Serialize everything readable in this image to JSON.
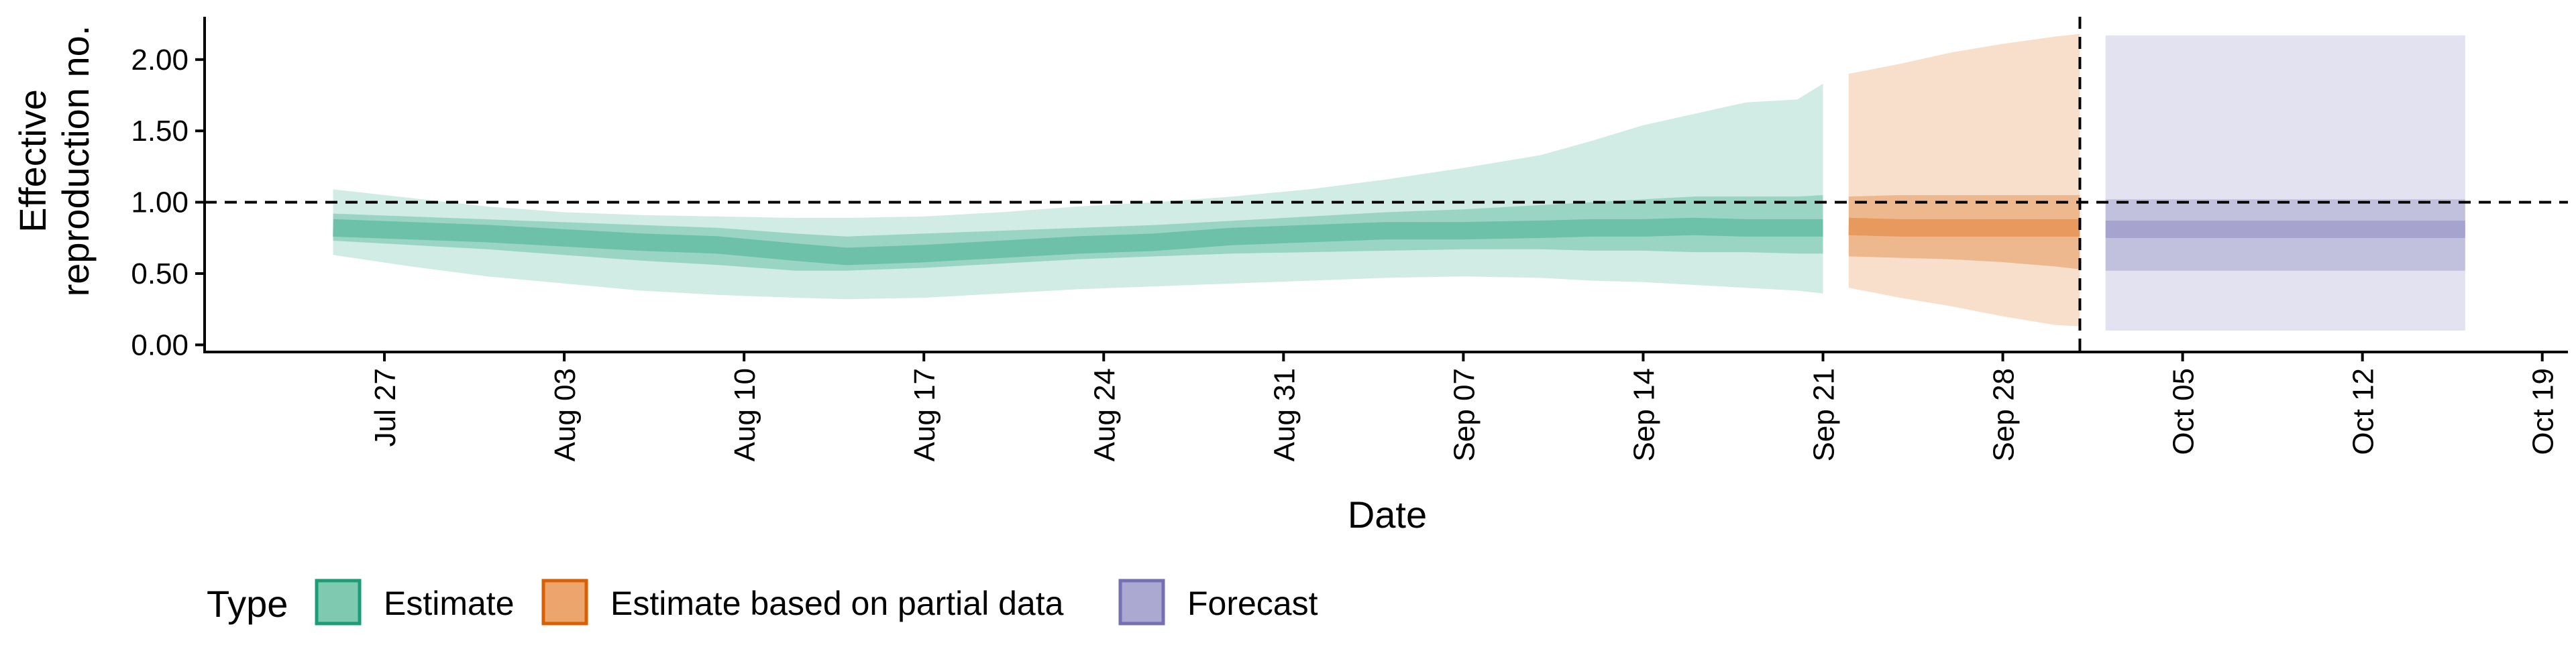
{
  "chart_data": {
    "type": "area",
    "xlabel": "Date",
    "ylabel_lines": [
      "Effective",
      "reproduction no."
    ],
    "ylim": [
      -0.05,
      2.3
    ],
    "xlim": [
      "2020-07-20",
      "2020-10-20"
    ],
    "y_ticks": [
      {
        "value": 0.0,
        "label": "0.00"
      },
      {
        "value": 0.5,
        "label": "0.50"
      },
      {
        "value": 1.0,
        "label": "1.00"
      },
      {
        "value": 1.5,
        "label": "1.50"
      },
      {
        "value": 2.0,
        "label": "2.00"
      }
    ],
    "x_ticks": [
      {
        "date": "2020-07-27",
        "label": "Jul 27"
      },
      {
        "date": "2020-08-03",
        "label": "Aug 03"
      },
      {
        "date": "2020-08-10",
        "label": "Aug 10"
      },
      {
        "date": "2020-08-17",
        "label": "Aug 17"
      },
      {
        "date": "2020-08-24",
        "label": "Aug 24"
      },
      {
        "date": "2020-08-31",
        "label": "Aug 31"
      },
      {
        "date": "2020-09-07",
        "label": "Sep 07"
      },
      {
        "date": "2020-09-14",
        "label": "Sep 14"
      },
      {
        "date": "2020-09-21",
        "label": "Sep 21"
      },
      {
        "date": "2020-09-28",
        "label": "Sep 28"
      },
      {
        "date": "2020-10-05",
        "label": "Oct 05"
      },
      {
        "date": "2020-10-12",
        "label": "Oct 12"
      },
      {
        "date": "2020-10-19",
        "label": "Oct 19"
      }
    ],
    "reference_lines": {
      "horizontal_y": 1.0,
      "vertical_date": "2020-10-01"
    },
    "grid": false,
    "legend": {
      "title": "Type",
      "position": "bottom-left",
      "entries": [
        {
          "label": "Estimate",
          "fill": "#7fc9b0",
          "stroke": "#1b9e77"
        },
        {
          "label": "Estimate based on partial data",
          "fill": "#eda56e",
          "stroke": "#d95f02"
        },
        {
          "label": "Forecast",
          "fill": "#aba8d1",
          "stroke": "#7570b3"
        }
      ]
    },
    "series": [
      {
        "type_label": "Estimate",
        "color": "#1b9e77",
        "x": [
          "2020-07-25",
          "2020-07-28",
          "2020-07-31",
          "2020-08-03",
          "2020-08-06",
          "2020-08-09",
          "2020-08-12",
          "2020-08-14",
          "2020-08-17",
          "2020-08-20",
          "2020-08-23",
          "2020-08-26",
          "2020-08-29",
          "2020-09-01",
          "2020-09-04",
          "2020-09-07",
          "2020-09-10",
          "2020-09-12",
          "2020-09-14",
          "2020-09-16",
          "2020-09-18",
          "2020-09-20",
          "2020-09-21"
        ],
        "median": [
          0.82,
          0.8,
          0.78,
          0.75,
          0.72,
          0.7,
          0.65,
          0.62,
          0.64,
          0.67,
          0.7,
          0.72,
          0.76,
          0.78,
          0.8,
          0.8,
          0.81,
          0.82,
          0.82,
          0.83,
          0.82,
          0.82,
          0.82
        ],
        "lower90": [
          0.63,
          0.55,
          0.48,
          0.43,
          0.38,
          0.35,
          0.33,
          0.32,
          0.33,
          0.36,
          0.39,
          0.41,
          0.43,
          0.45,
          0.47,
          0.48,
          0.47,
          0.45,
          0.44,
          0.42,
          0.4,
          0.38,
          0.36
        ],
        "upper90": [
          1.09,
          1.03,
          0.97,
          0.93,
          0.91,
          0.9,
          0.89,
          0.89,
          0.9,
          0.93,
          0.97,
          1.0,
          1.04,
          1.09,
          1.16,
          1.24,
          1.33,
          1.43,
          1.54,
          1.62,
          1.7,
          1.72,
          1.83
        ],
        "lower50": [
          0.73,
          0.7,
          0.67,
          0.63,
          0.59,
          0.56,
          0.52,
          0.52,
          0.54,
          0.57,
          0.6,
          0.62,
          0.64,
          0.65,
          0.66,
          0.67,
          0.67,
          0.66,
          0.66,
          0.65,
          0.65,
          0.64,
          0.64
        ],
        "upper50": [
          0.92,
          0.9,
          0.88,
          0.86,
          0.84,
          0.82,
          0.78,
          0.76,
          0.78,
          0.8,
          0.82,
          0.84,
          0.87,
          0.9,
          0.93,
          0.95,
          0.98,
          1.0,
          1.02,
          1.04,
          1.04,
          1.04,
          1.05
        ]
      },
      {
        "type_label": "Estimate based on partial data",
        "color": "#d95f02",
        "x": [
          "2020-09-22",
          "2020-09-24",
          "2020-09-26",
          "2020-09-28",
          "2020-09-30",
          "2020-10-01"
        ],
        "median": [
          0.83,
          0.82,
          0.82,
          0.82,
          0.82,
          0.82
        ],
        "lower90": [
          0.4,
          0.33,
          0.27,
          0.2,
          0.14,
          0.13
        ],
        "upper90": [
          1.9,
          1.97,
          2.05,
          2.11,
          2.16,
          2.18
        ],
        "lower50": [
          0.62,
          0.61,
          0.6,
          0.58,
          0.55,
          0.53
        ],
        "upper50": [
          1.04,
          1.05,
          1.05,
          1.05,
          1.05,
          1.05
        ]
      },
      {
        "type_label": "Forecast",
        "color": "#7570b3",
        "x": [
          "2020-10-02",
          "2020-10-16"
        ],
        "median": [
          0.81,
          0.81
        ],
        "lower90": [
          0.1,
          0.1
        ],
        "upper90": [
          2.17,
          2.17
        ],
        "lower50": [
          0.52,
          0.52
        ],
        "upper50": [
          1.02,
          1.02
        ]
      }
    ]
  }
}
